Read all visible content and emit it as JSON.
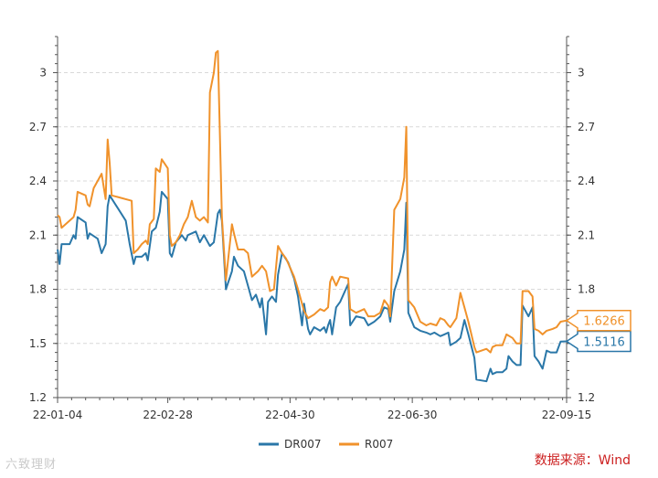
{
  "source_label": "数据来源：Wind",
  "watermark": "六致理财",
  "colors": {
    "DR007": "#2a77a8",
    "R007": "#f0922b",
    "grid": "#d9d9d9",
    "axis": "#555555"
  },
  "chart_data": {
    "type": "line",
    "x_start": "2022-01-04",
    "x_end": "2022-09-15",
    "x_tick_labels": [
      "22-01-04",
      "22-02-28",
      "22-04-30",
      "22-06-30",
      "22-09-15"
    ],
    "x_tick_dates": [
      "2022-01-04",
      "2022-02-28",
      "2022-04-30",
      "2022-06-30",
      "2022-09-15"
    ],
    "y_ticks": [
      1.2,
      1.5,
      1.8,
      2.1,
      2.4,
      2.7,
      3
    ],
    "y_tick_labels": [
      "1.2",
      "1.5",
      "1.8",
      "2.1",
      "2.4",
      "2.7",
      "3"
    ],
    "ylim": [
      1.2,
      3.2
    ],
    "grid": true,
    "legend_position": "bottom-center",
    "series": [
      {
        "name": "DR007",
        "last_value_label": "1.5116",
        "points": [
          [
            "2022-01-04",
            2.02
          ],
          [
            "2022-01-05",
            1.94
          ],
          [
            "2022-01-06",
            2.05
          ],
          [
            "2022-01-10",
            2.05
          ],
          [
            "2022-01-12",
            2.1
          ],
          [
            "2022-01-13",
            2.08
          ],
          [
            "2022-01-14",
            2.2
          ],
          [
            "2022-01-18",
            2.17
          ],
          [
            "2022-01-19",
            2.08
          ],
          [
            "2022-01-20",
            2.11
          ],
          [
            "2022-01-24",
            2.08
          ],
          [
            "2022-01-26",
            2.0
          ],
          [
            "2022-01-28",
            2.05
          ],
          [
            "2022-01-29",
            2.26
          ],
          [
            "2022-01-30",
            2.32
          ],
          [
            "2022-02-07",
            2.18
          ],
          [
            "2022-02-09",
            2.05
          ],
          [
            "2022-02-11",
            1.94
          ],
          [
            "2022-02-12",
            1.98
          ],
          [
            "2022-02-15",
            1.98
          ],
          [
            "2022-02-17",
            2.0
          ],
          [
            "2022-02-18",
            1.96
          ],
          [
            "2022-02-20",
            2.12
          ],
          [
            "2022-02-22",
            2.14
          ],
          [
            "2022-02-24",
            2.23
          ],
          [
            "2022-02-25",
            2.34
          ],
          [
            "2022-02-28",
            2.3
          ],
          [
            "2022-03-01",
            2.0
          ],
          [
            "2022-03-02",
            1.98
          ],
          [
            "2022-03-04",
            2.06
          ],
          [
            "2022-03-07",
            2.1
          ],
          [
            "2022-03-09",
            2.07
          ],
          [
            "2022-03-10",
            2.1
          ],
          [
            "2022-03-14",
            2.12
          ],
          [
            "2022-03-16",
            2.06
          ],
          [
            "2022-03-18",
            2.1
          ],
          [
            "2022-03-21",
            2.04
          ],
          [
            "2022-03-23",
            2.06
          ],
          [
            "2022-03-25",
            2.22
          ],
          [
            "2022-03-26",
            2.24
          ],
          [
            "2022-03-27",
            2.18
          ],
          [
            "2022-03-29",
            1.8
          ],
          [
            "2022-04-01",
            1.9
          ],
          [
            "2022-04-02",
            1.98
          ],
          [
            "2022-04-04",
            1.93
          ],
          [
            "2022-04-07",
            1.9
          ],
          [
            "2022-04-09",
            1.82
          ],
          [
            "2022-04-11",
            1.74
          ],
          [
            "2022-04-13",
            1.77
          ],
          [
            "2022-04-15",
            1.7
          ],
          [
            "2022-04-16",
            1.75
          ],
          [
            "2022-04-18",
            1.55
          ],
          [
            "2022-04-19",
            1.73
          ],
          [
            "2022-04-21",
            1.76
          ],
          [
            "2022-04-23",
            1.73
          ],
          [
            "2022-04-24",
            1.88
          ],
          [
            "2022-04-26",
            2.0
          ],
          [
            "2022-04-29",
            1.95
          ],
          [
            "2022-05-02",
            1.86
          ],
          [
            "2022-05-04",
            1.76
          ],
          [
            "2022-05-06",
            1.6
          ],
          [
            "2022-05-07",
            1.72
          ],
          [
            "2022-05-09",
            1.58
          ],
          [
            "2022-05-10",
            1.55
          ],
          [
            "2022-05-12",
            1.59
          ],
          [
            "2022-05-15",
            1.57
          ],
          [
            "2022-05-17",
            1.59
          ],
          [
            "2022-05-18",
            1.56
          ],
          [
            "2022-05-19",
            1.6
          ],
          [
            "2022-05-20",
            1.63
          ],
          [
            "2022-05-21",
            1.55
          ],
          [
            "2022-05-23",
            1.7
          ],
          [
            "2022-05-25",
            1.73
          ],
          [
            "2022-05-29",
            1.83
          ],
          [
            "2022-05-30",
            1.6
          ],
          [
            "2022-06-02",
            1.65
          ],
          [
            "2022-06-06",
            1.64
          ],
          [
            "2022-06-08",
            1.6
          ],
          [
            "2022-06-11",
            1.62
          ],
          [
            "2022-06-14",
            1.65
          ],
          [
            "2022-06-16",
            1.7
          ],
          [
            "2022-06-18",
            1.69
          ],
          [
            "2022-06-19",
            1.62
          ],
          [
            "2022-06-21",
            1.79
          ],
          [
            "2022-06-24",
            1.9
          ],
          [
            "2022-06-26",
            2.02
          ],
          [
            "2022-06-27",
            2.28
          ],
          [
            "2022-06-28",
            1.67
          ],
          [
            "2022-07-01",
            1.59
          ],
          [
            "2022-07-04",
            1.57
          ],
          [
            "2022-07-07",
            1.56
          ],
          [
            "2022-07-09",
            1.55
          ],
          [
            "2022-07-11",
            1.56
          ],
          [
            "2022-07-14",
            1.54
          ],
          [
            "2022-07-16",
            1.55
          ],
          [
            "2022-07-18",
            1.56
          ],
          [
            "2022-07-19",
            1.49
          ],
          [
            "2022-07-22",
            1.51
          ],
          [
            "2022-07-24",
            1.53
          ],
          [
            "2022-07-26",
            1.63
          ],
          [
            "2022-07-28",
            1.55
          ],
          [
            "2022-07-31",
            1.42
          ],
          [
            "2022-08-01",
            1.3
          ],
          [
            "2022-08-06",
            1.29
          ],
          [
            "2022-08-08",
            1.36
          ],
          [
            "2022-08-09",
            1.33
          ],
          [
            "2022-08-11",
            1.34
          ],
          [
            "2022-08-14",
            1.34
          ],
          [
            "2022-08-16",
            1.36
          ],
          [
            "2022-08-17",
            1.43
          ],
          [
            "2022-08-19",
            1.4
          ],
          [
            "2022-08-21",
            1.38
          ],
          [
            "2022-08-23",
            1.38
          ],
          [
            "2022-08-24",
            1.71
          ],
          [
            "2022-08-26",
            1.67
          ],
          [
            "2022-08-27",
            1.65
          ],
          [
            "2022-08-29",
            1.7
          ],
          [
            "2022-08-30",
            1.43
          ],
          [
            "2022-09-01",
            1.4
          ],
          [
            "2022-09-03",
            1.36
          ],
          [
            "2022-09-05",
            1.46
          ],
          [
            "2022-09-07",
            1.45
          ],
          [
            "2022-09-10",
            1.45
          ],
          [
            "2022-09-12",
            1.51
          ],
          [
            "2022-09-15",
            1.5116
          ]
        ]
      },
      {
        "name": "R007",
        "last_value_label": "1.6266",
        "points": [
          [
            "2022-01-04",
            2.21
          ],
          [
            "2022-01-05",
            2.2
          ],
          [
            "2022-01-06",
            2.14
          ],
          [
            "2022-01-10",
            2.18
          ],
          [
            "2022-01-12",
            2.2
          ],
          [
            "2022-01-13",
            2.24
          ],
          [
            "2022-01-14",
            2.34
          ],
          [
            "2022-01-18",
            2.32
          ],
          [
            "2022-01-19",
            2.27
          ],
          [
            "2022-01-20",
            2.26
          ],
          [
            "2022-01-22",
            2.36
          ],
          [
            "2022-01-26",
            2.44
          ],
          [
            "2022-01-28",
            2.3
          ],
          [
            "2022-01-29",
            2.63
          ],
          [
            "2022-01-30",
            2.5
          ],
          [
            "2022-01-31",
            2.32
          ],
          [
            "2022-02-10",
            2.29
          ],
          [
            "2022-02-11",
            2.0
          ],
          [
            "2022-02-13",
            2.02
          ],
          [
            "2022-02-15",
            2.05
          ],
          [
            "2022-02-17",
            2.07
          ],
          [
            "2022-02-18",
            2.05
          ],
          [
            "2022-02-19",
            2.16
          ],
          [
            "2022-02-21",
            2.19
          ],
          [
            "2022-02-22",
            2.47
          ],
          [
            "2022-02-24",
            2.45
          ],
          [
            "2022-02-25",
            2.52
          ],
          [
            "2022-02-28",
            2.47
          ],
          [
            "2022-03-01",
            2.1
          ],
          [
            "2022-03-02",
            2.04
          ],
          [
            "2022-03-04",
            2.06
          ],
          [
            "2022-03-06",
            2.1
          ],
          [
            "2022-03-08",
            2.16
          ],
          [
            "2022-03-10",
            2.2
          ],
          [
            "2022-03-12",
            2.29
          ],
          [
            "2022-03-14",
            2.2
          ],
          [
            "2022-03-16",
            2.18
          ],
          [
            "2022-03-18",
            2.2
          ],
          [
            "2022-03-20",
            2.17
          ],
          [
            "2022-03-21",
            2.89
          ],
          [
            "2022-03-23",
            3.0
          ],
          [
            "2022-03-24",
            3.11
          ],
          [
            "2022-03-25",
            3.12
          ],
          [
            "2022-03-27",
            2.2
          ],
          [
            "2022-03-29",
            1.85
          ],
          [
            "2022-04-01",
            2.16
          ],
          [
            "2022-04-02",
            2.11
          ],
          [
            "2022-04-04",
            2.02
          ],
          [
            "2022-04-07",
            2.02
          ],
          [
            "2022-04-09",
            2.0
          ],
          [
            "2022-04-11",
            1.87
          ],
          [
            "2022-04-14",
            1.9
          ],
          [
            "2022-04-16",
            1.93
          ],
          [
            "2022-04-18",
            1.9
          ],
          [
            "2022-04-20",
            1.79
          ],
          [
            "2022-04-22",
            1.8
          ],
          [
            "2022-04-24",
            2.04
          ],
          [
            "2022-04-26",
            2.0
          ],
          [
            "2022-04-28",
            1.97
          ],
          [
            "2022-05-02",
            1.87
          ],
          [
            "2022-05-04",
            1.8
          ],
          [
            "2022-05-06",
            1.72
          ],
          [
            "2022-05-07",
            1.68
          ],
          [
            "2022-05-09",
            1.64
          ],
          [
            "2022-05-12",
            1.66
          ],
          [
            "2022-05-15",
            1.69
          ],
          [
            "2022-05-17",
            1.68
          ],
          [
            "2022-05-19",
            1.7
          ],
          [
            "2022-05-20",
            1.84
          ],
          [
            "2022-05-21",
            1.87
          ],
          [
            "2022-05-23",
            1.82
          ],
          [
            "2022-05-25",
            1.87
          ],
          [
            "2022-05-29",
            1.86
          ],
          [
            "2022-05-30",
            1.69
          ],
          [
            "2022-06-02",
            1.67
          ],
          [
            "2022-06-06",
            1.69
          ],
          [
            "2022-06-08",
            1.65
          ],
          [
            "2022-06-11",
            1.65
          ],
          [
            "2022-06-14",
            1.67
          ],
          [
            "2022-06-16",
            1.74
          ],
          [
            "2022-06-18",
            1.71
          ],
          [
            "2022-06-19",
            1.65
          ],
          [
            "2022-06-21",
            2.24
          ],
          [
            "2022-06-24",
            2.3
          ],
          [
            "2022-06-26",
            2.42
          ],
          [
            "2022-06-27",
            2.7
          ],
          [
            "2022-06-28",
            1.74
          ],
          [
            "2022-07-01",
            1.7
          ],
          [
            "2022-07-04",
            1.62
          ],
          [
            "2022-07-07",
            1.6
          ],
          [
            "2022-07-09",
            1.61
          ],
          [
            "2022-07-12",
            1.6
          ],
          [
            "2022-07-14",
            1.64
          ],
          [
            "2022-07-16",
            1.63
          ],
          [
            "2022-07-18",
            1.6
          ],
          [
            "2022-07-19",
            1.59
          ],
          [
            "2022-07-22",
            1.64
          ],
          [
            "2022-07-24",
            1.78
          ],
          [
            "2022-07-26",
            1.7
          ],
          [
            "2022-07-28",
            1.62
          ],
          [
            "2022-07-31",
            1.48
          ],
          [
            "2022-08-01",
            1.45
          ],
          [
            "2022-08-06",
            1.47
          ],
          [
            "2022-08-08",
            1.45
          ],
          [
            "2022-08-09",
            1.48
          ],
          [
            "2022-08-11",
            1.49
          ],
          [
            "2022-08-14",
            1.49
          ],
          [
            "2022-08-16",
            1.55
          ],
          [
            "2022-08-19",
            1.53
          ],
          [
            "2022-08-21",
            1.5
          ],
          [
            "2022-08-23",
            1.5
          ],
          [
            "2022-08-24",
            1.79
          ],
          [
            "2022-08-27",
            1.79
          ],
          [
            "2022-08-29",
            1.76
          ],
          [
            "2022-08-30",
            1.58
          ],
          [
            "2022-09-01",
            1.57
          ],
          [
            "2022-09-03",
            1.55
          ],
          [
            "2022-09-05",
            1.57
          ],
          [
            "2022-09-08",
            1.58
          ],
          [
            "2022-09-10",
            1.59
          ],
          [
            "2022-09-12",
            1.62
          ],
          [
            "2022-09-15",
            1.6266
          ]
        ]
      }
    ]
  }
}
